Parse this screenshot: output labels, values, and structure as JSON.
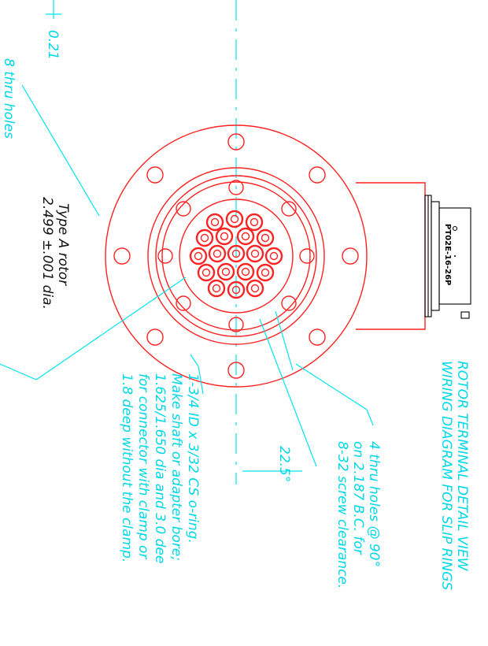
{
  "title": {
    "line1": "ROTOR TERMINAL DETAIL VIEW",
    "line2": "WIRING DIAGRAM FOR SLIP RINGS"
  },
  "dimension_021": "0.21",
  "flange_holes_note": "8 thru holes",
  "rotor_note": {
    "line1": "Type A rotor",
    "line2": "2.499 ±.001 dia."
  },
  "bolt_holes_note": {
    "line1": "4 thru holes @ 90°",
    "line2": "on 2.187 B.C. for",
    "line3": "8-32 screw clearance."
  },
  "angle_label": "22.5°",
  "oring_note": {
    "line1": "1-3/4 ID x 3/32 CS o-ring.",
    "line2": "Make shaft or adapter bore;",
    "line3": "1.625/1.650 dia and 3.0 dee",
    "line4": "for connector with clamp or",
    "line5": "1.8 deep without the clamp."
  },
  "connector_part": "PT02E-16-26P",
  "colors": {
    "annotation": "#00e5ee",
    "part_outline": "#ff2222",
    "connector": "#000000",
    "rotor_text": "#111111",
    "background": "#ffffff"
  }
}
